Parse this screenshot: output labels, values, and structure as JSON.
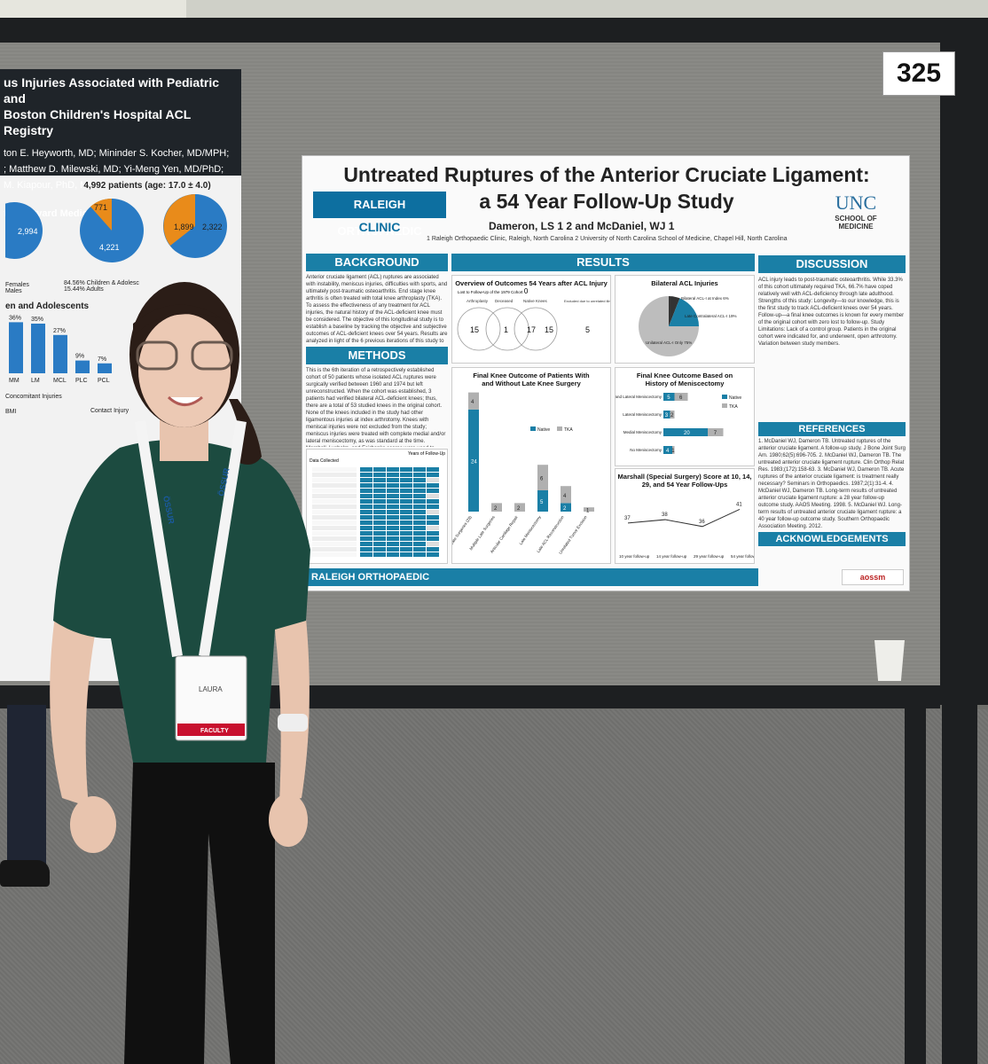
{
  "sign_number": "325",
  "left_poster": {
    "title_line1": "us Injuries Associated with Pediatric and",
    "title_line2": "Boston Children's Hospital ACL Registry",
    "authors_line1": "ton E. Heyworth, MD; Mininder S. Kocher, MD/MPH;",
    "authors_line2": "; Matthew D. Milewski, MD; Yi-Meng Yen, MD/PhD;",
    "authors_line3": "M. Kiapour, PhD, MMSc",
    "institution": "tal, Harvard Medical School",
    "patients": "4,992 patients (age: 17.0 ± 4.0)",
    "pie_values": [
      "2,994",
      "771",
      "4,221",
      "1,899",
      "2,322"
    ],
    "legend_females": "Females",
    "legend_males": "Males",
    "legend_children": "84.56% Children & Adolesc",
    "legend_adults": "15.44% Adults",
    "section_children": "en and Adolescents",
    "bar_pcts": [
      "36%",
      "35%",
      "27%",
      "9%",
      "7%"
    ],
    "bar_cats": [
      "MM",
      "LM",
      "MCL",
      "PLC",
      "PCL"
    ],
    "concomitant_label": "Concomitant Injuries",
    "bmi_label": "BMI",
    "contact_label": "Contact Injury"
  },
  "poster": {
    "title_line1": "Untreated Ruptures of the Anterior Cruciate Ligament:",
    "title_line2": "a 54 Year Follow-Up Study",
    "logo_line1": "RALEIGH ORTHOPAEDIC",
    "logo_line2": "CLINIC",
    "unc": "UNC",
    "unc_sub": "SCHOOL OF MEDICINE",
    "authors": "Dameron, LS 1 2  and  McDaniel, WJ 1",
    "affil": "1 Raleigh Orthopaedic Clinic, Raleigh, North Carolina    2 University of North Carolina School of Medicine, Chapel Hill, North Carolina",
    "background_header": "BACKGROUND",
    "background_text": "Anterior cruciate ligament (ACL) ruptures are associated with instability, meniscus injuries, difficulties with sports, and ultimately post-traumatic osteoarthritis. End stage knee arthritis is often treated with total knee arthroplasty (TKA). To assess the effectiveness of any treatment for ACL injuries, the natural history of the ACL-deficient knee must be considered. The objective of this longitudinal study is to establish a baseline by tracking the objective and subjective outcomes of ACL-deficient knees over 54 years. Results are analyzed in light of the 6 previous iterations of this study to assess the natural history of the ACL-deficient knee.",
    "methods_header": "METHODS",
    "methods_text": "This is the 6th iteration of a retrospectively established cohort of 50 patients whose isolated ACL ruptures were surgically verified between 1960 and 1974 but left unreconstructed. When the cohort was established, 3 patients had verified bilateral ACL-deficient knees; thus, there are a total of 53 studied knees in the original cohort. None of the knees included in the study had other ligamentous injuries at index arthrotomy. Knees with meniscal injuries were not excluded from the study; meniscus injuries were treated with complete medial and/or lateral meniscectomy, as was standard at the time. Marshall, Lysholm, and Fairbanks scores were used to objectively assess stability, functionality, and radiographic changes, respectively.",
    "results_header": "RESULTS",
    "discussion_header": "DISCUSSION",
    "discussion_text": "ACL injury leads to post-traumatic osteoarthritis. While 33.3% of this cohort ultimately required TKA, 66.7% have coped relatively well with ACL-deficiency through late adulthood. Strengths of this study: Longevity—to our knowledge, this is the first study to track ACL-deficient knees over 54 years. Follow-up—a final knee outcomes is known for every member of the original cohort with zero lost to follow-up. Study Limitations: Lack of a control group. Patients in the original cohort were indicated for, and underwent, open arthrotomy. Variation between study members.",
    "references_header": "REFERENCES",
    "references_text": "1. McDaniel WJ, Dameron TB. Untreated ruptures of the anterior cruciate ligament. A follow-up study. J Bone Joint Surg Am. 1980;62(5):696-705. 2. McDaniel WJ, Dameron TB. The untreated anterior cruciate ligament rupture. Clin Orthop Relat Res. 1983;(172):158-63. 3. McDaniel WJ, Dameron TB. Acute ruptures of the anterior cruciate ligament: is treatment really necessary? Seminars in Orthopaedics. 1987;2(1):31-4. 4. McDaniel WJ, Dameron TB. Long-term results of untreated anterior cruciate ligament rupture: a 28 year follow-up outcome study. AAOS Meeting. 1998. 5. McDaniel WJ. Long-term results of untreated anterior cruciate ligament rupture: a 40 year follow-up outcome study. Southern Orthopaedic Association Meeting. 2012.",
    "ack_header": "ACKNOWLEDGEMENTS",
    "footer_logo": "RALEIGH ORTHOPAEDIC",
    "aossm": "aossm",
    "overview_title": "Overview of Outcomes 54 Years after ACL Injury",
    "overview_lost": "Lost to Follow-Up of the 1979 Cohort",
    "overview_lost_val": "0",
    "venn_labels": [
      "Arthroplasty",
      "Deceased",
      "Native Knees",
      "Excluded due to unrelated illness or disability"
    ],
    "venn_values": [
      "15",
      "1",
      "17",
      "15",
      "5"
    ],
    "bilateral_title": "Bilateral ACL Injuries",
    "bilateral_labels": [
      "Bilateral ACL-I at Index 6%",
      "Late Contralateral ACL-I 19%",
      "Unilateral ACL-I Only 75%"
    ],
    "final_title_1": "Final Knee Outcome of Patients With",
    "final_title_2": "and Without Late Knee Surgery",
    "menisc_title_1": "Final Knee Outcome Based on",
    "menisc_title_2": "History of Meniscectomy",
    "marshall_title": "Marshall (Special Surgery) Score at 10, 14, 29, and 54 Year Follow-Ups",
    "table_header": "Years of Follow-Up",
    "table_col0": "Data Collected"
  },
  "chart_data": [
    {
      "type": "bar",
      "title": "Final Knee Outcome of Patients With and Without Late Knee Surgery",
      "categories": [
        "No Late Surgeries (28)",
        "Multiple Late Surgeries",
        "Articular Cartilage Repair",
        "Late Meniscectomy",
        "Late ACL Reconstruction",
        "Unrelated Tumor Excision"
      ],
      "series": [
        {
          "name": "Native",
          "values": [
            24,
            0,
            0,
            5,
            2,
            0
          ]
        },
        {
          "name": "TKA",
          "values": [
            4,
            2,
            2,
            6,
            4,
            1
          ]
        }
      ],
      "colors": {
        "Native": "#1a7fa6",
        "TKA": "#b0b0b0"
      }
    },
    {
      "type": "bar",
      "title": "Final Knee Outcome Based on History of Meniscectomy",
      "categories": [
        "Medial and Lateral Meniscectomy",
        "Lateral Meniscectomy",
        "Medial Meniscectomy",
        "No Meniscectomy"
      ],
      "series": [
        {
          "name": "Native",
          "values": [
            5,
            3,
            20,
            4
          ]
        },
        {
          "name": "TKA",
          "values": [
            6,
            2,
            7,
            1
          ]
        }
      ]
    },
    {
      "type": "line",
      "title": "Marshall (Special Surgery) Score at 10, 14, 29, and 54 Year Follow-Ups",
      "categories": [
        "10 year follow-up",
        "14 year follow-up",
        "29 year follow-up",
        "54 year follow-up"
      ],
      "values": [
        37,
        38,
        36,
        41
      ]
    },
    {
      "type": "pie",
      "title": "Bilateral ACL Injuries",
      "labels": [
        "Bilateral ACL-I at Index",
        "Late Contralateral ACL-I",
        "Unilateral ACL-I Only"
      ],
      "values": [
        6,
        19,
        75
      ]
    }
  ],
  "badge": {
    "name": "LAURA",
    "role": "FACULTY"
  },
  "lanyard_text": "ÖSSUR"
}
